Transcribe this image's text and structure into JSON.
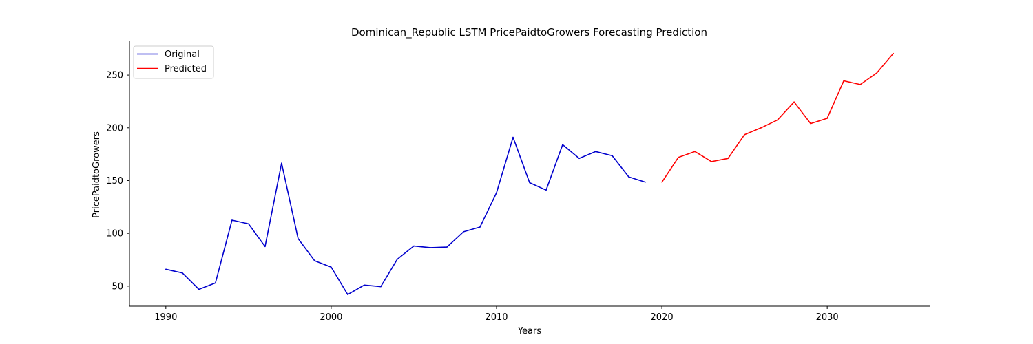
{
  "chart_data": {
    "type": "line",
    "title": "Dominican_Republic LSTM PricePaidtoGrowers Forecasting Prediction",
    "xlabel": "Years",
    "ylabel": "PricePaidtoGrowers",
    "xlim": [
      1987.8,
      2036.2
    ],
    "ylim": [
      31,
      282
    ],
    "xticks": [
      1990,
      2000,
      2010,
      2020,
      2030
    ],
    "yticks": [
      50,
      100,
      150,
      200,
      250
    ],
    "grid": false,
    "legend_position": "upper-left",
    "series": [
      {
        "name": "Original",
        "color": "#0000cd",
        "x": [
          1990,
          1991,
          1992,
          1993,
          1994,
          1995,
          1996,
          1997,
          1998,
          1999,
          2000,
          2001,
          2002,
          2003,
          2004,
          2005,
          2006,
          2007,
          2008,
          2009,
          2010,
          2011,
          2012,
          2013,
          2014,
          2015,
          2016,
          2017,
          2018,
          2019
        ],
        "values": [
          66,
          62.5,
          47,
          53,
          112.5,
          109,
          87.5,
          166.5,
          95,
          74,
          68,
          42,
          51,
          49.5,
          75.5,
          88,
          86.5,
          87,
          101.5,
          106,
          138.5,
          191,
          148,
          141,
          184,
          171,
          177.5,
          173.5,
          153.5,
          148.5
        ]
      },
      {
        "name": "Predicted",
        "color": "#ff0000",
        "x": [
          2020,
          2021,
          2022,
          2023,
          2024,
          2025,
          2026,
          2027,
          2028,
          2029,
          2030,
          2031,
          2032,
          2033,
          2034
        ],
        "values": [
          148.5,
          172,
          177.5,
          168,
          171,
          193.5,
          200,
          207.5,
          224.5,
          204,
          209,
          244.5,
          241,
          252,
          270.5
        ]
      }
    ]
  }
}
